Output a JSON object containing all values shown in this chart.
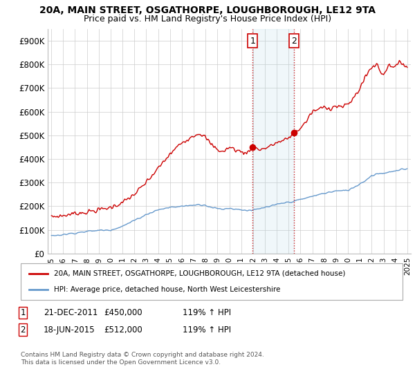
{
  "title": "20A, MAIN STREET, OSGATHORPE, LOUGHBOROUGH, LE12 9TA",
  "subtitle": "Price paid vs. HM Land Registry's House Price Index (HPI)",
  "ylabel_ticks": [
    "£0",
    "£100K",
    "£200K",
    "£300K",
    "£400K",
    "£500K",
    "£600K",
    "£700K",
    "£800K",
    "£900K"
  ],
  "ytick_values": [
    0,
    100000,
    200000,
    300000,
    400000,
    500000,
    600000,
    700000,
    800000,
    900000
  ],
  "ylim": [
    0,
    950000
  ],
  "xlim_start": 1994.7,
  "xlim_end": 2025.3,
  "sale1_year": 2011.97,
  "sale1_price": 450000,
  "sale2_year": 2015.46,
  "sale2_price": 512000,
  "legend_label_red": "20A, MAIN STREET, OSGATHORPE, LOUGHBOROUGH, LE12 9TA (detached house)",
  "legend_label_blue": "HPI: Average price, detached house, North West Leicestershire",
  "table_row1": [
    "1",
    "21-DEC-2011",
    "£450,000",
    "119% ↑ HPI"
  ],
  "table_row2": [
    "2",
    "18-JUN-2015",
    "£512,000",
    "119% ↑ HPI"
  ],
  "footnote1": "Contains HM Land Registry data © Crown copyright and database right 2024.",
  "footnote2": "This data is licensed under the Open Government Licence v3.0.",
  "red_color": "#cc0000",
  "blue_color": "#6699cc",
  "grid_color": "#cccccc",
  "bg_color": "#ffffff",
  "span_color": "#ddeeff"
}
